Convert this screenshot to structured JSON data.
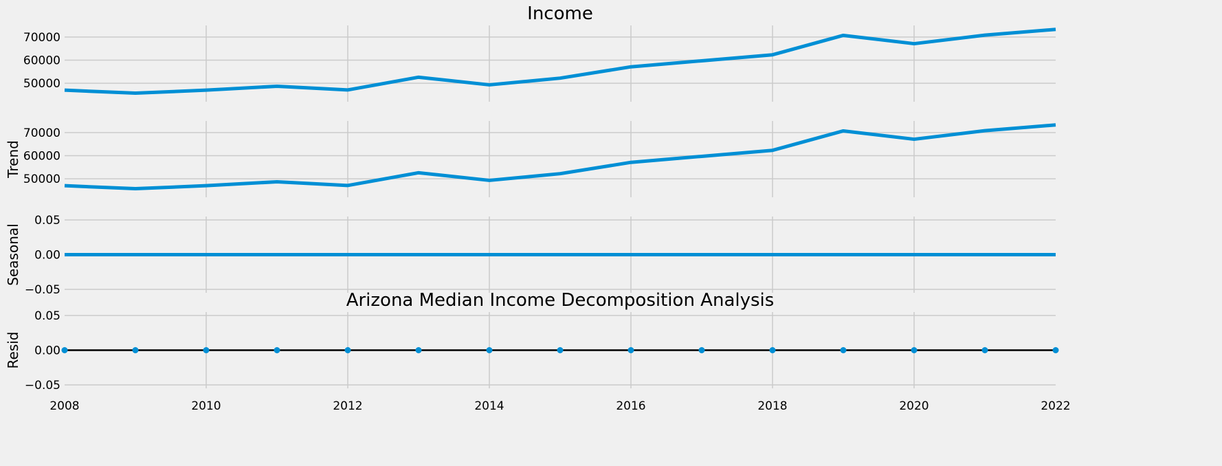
{
  "figure": {
    "title": "Arizona Median Income Decomposition Analysis",
    "background": "#f0f0f0",
    "grid_color": "#cbcbcb",
    "line_color": "#008fd5",
    "zero_line_color": "#000000"
  },
  "chart_data": [
    {
      "type": "line",
      "title": "Income",
      "ylabel": "",
      "x": [
        2008,
        2009,
        2010,
        2011,
        2012,
        2013,
        2014,
        2015,
        2016,
        2017,
        2018,
        2019,
        2020,
        2021,
        2022
      ],
      "values": [
        47000,
        45700,
        47000,
        48700,
        47100,
        52600,
        49300,
        52200,
        57100,
        59700,
        62300,
        70700,
        67100,
        70800,
        73300
      ],
      "xlim": [
        2008,
        2022
      ],
      "ylim": [
        42000,
        75000
      ],
      "yticks": [
        50000,
        60000,
        70000
      ],
      "grid": true,
      "x_tick_labels_visible": false
    },
    {
      "type": "line",
      "title": "",
      "ylabel": "Trend",
      "x": [
        2008,
        2009,
        2010,
        2011,
        2012,
        2013,
        2014,
        2015,
        2016,
        2017,
        2018,
        2019,
        2020,
        2021,
        2022
      ],
      "values": [
        47000,
        45700,
        47000,
        48700,
        47100,
        52600,
        49300,
        52200,
        57100,
        59700,
        62300,
        70700,
        67100,
        70800,
        73300
      ],
      "xlim": [
        2008,
        2022
      ],
      "ylim": [
        42000,
        75000
      ],
      "yticks": [
        50000,
        60000,
        70000
      ],
      "grid": true,
      "x_tick_labels_visible": false
    },
    {
      "type": "line",
      "title": "",
      "ylabel": "Seasonal",
      "x": [
        2008,
        2009,
        2010,
        2011,
        2012,
        2013,
        2014,
        2015,
        2016,
        2017,
        2018,
        2019,
        2020,
        2021,
        2022
      ],
      "values": [
        0,
        0,
        0,
        0,
        0,
        0,
        0,
        0,
        0,
        0,
        0,
        0,
        0,
        0,
        0
      ],
      "xlim": [
        2008,
        2022
      ],
      "ylim": [
        -0.055,
        0.055
      ],
      "yticks": [
        -0.05,
        0.0,
        0.05
      ],
      "ytick_labels": [
        "−0.05",
        "0.00",
        "0.05"
      ],
      "grid": true,
      "x_tick_labels_visible": false
    },
    {
      "type": "scatter",
      "title": "Arizona Median Income Decomposition Analysis",
      "ylabel": "Resid",
      "x": [
        2008,
        2009,
        2010,
        2011,
        2012,
        2013,
        2014,
        2015,
        2016,
        2017,
        2018,
        2019,
        2020,
        2021,
        2022
      ],
      "values": [
        0,
        0,
        0,
        0,
        0,
        0,
        0,
        0,
        0,
        0,
        0,
        0,
        0,
        0,
        0
      ],
      "zero_line": true,
      "xlim": [
        2008,
        2022
      ],
      "ylim": [
        -0.055,
        0.055
      ],
      "yticks": [
        -0.05,
        0.0,
        0.05
      ],
      "ytick_labels": [
        "−0.05",
        "0.00",
        "0.05"
      ],
      "xticks": [
        2008,
        2010,
        2012,
        2014,
        2016,
        2018,
        2020,
        2022
      ],
      "xtick_labels": [
        "2008",
        "2010",
        "2012",
        "2014",
        "2016",
        "2018",
        "2020",
        "2022"
      ],
      "grid": true,
      "x_tick_labels_visible": true
    }
  ]
}
